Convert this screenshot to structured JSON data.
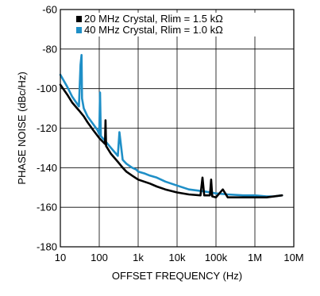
{
  "chart_data": {
    "type": "line",
    "xlabel": "OFFSET FREQUENCY (Hz)",
    "ylabel": "PHASE NOISE (dBc/Hz)",
    "x_scale": "log",
    "xlim": [
      10,
      10000000
    ],
    "ylim": [
      -180,
      -60
    ],
    "x_ticks": [
      10,
      100,
      1000,
      10000,
      100000,
      1000000,
      10000000
    ],
    "x_tick_labels": [
      "10",
      "100",
      "1k",
      "10k",
      "100k",
      "1M",
      "10M"
    ],
    "y_ticks": [
      -60,
      -80,
      -100,
      -120,
      -140,
      -160,
      -180
    ],
    "y_tick_labels": [
      "-60",
      "-80",
      "-100",
      "-120",
      "-140",
      "-160",
      "-180"
    ],
    "grid": true,
    "legend_position": "top-right",
    "series": [
      {
        "name": "40 MHz Crystal, Rlim = 1.0 kΩ",
        "color": "#1f8fc7",
        "x": [
          10,
          15,
          20,
          30,
          33,
          35,
          36,
          40,
          50,
          70,
          90,
          100,
          105,
          110,
          150,
          200,
          300,
          330,
          400,
          500,
          700,
          900,
          1000,
          1500,
          2000,
          3000,
          5000,
          10000,
          20000,
          50000,
          100000,
          200000,
          500000,
          1000000,
          2000000,
          3000000,
          5000000
        ],
        "y": [
          -93,
          -99,
          -104,
          -109,
          -88,
          -83,
          -105,
          -110,
          -114,
          -118,
          -121,
          -123,
          -102,
          -124,
          -127,
          -130,
          -134,
          -122,
          -136,
          -138,
          -140,
          -141,
          -142,
          -143,
          -144,
          -145,
          -147,
          -149,
          -151,
          -152,
          -153,
          -153.5,
          -154,
          -154,
          -154.5,
          -154.5,
          -154
        ]
      },
      {
        "name": "20 MHz Crystal, Rlim = 1.5 kΩ",
        "color": "#000000",
        "x": [
          10,
          15,
          20,
          30,
          40,
          50,
          70,
          100,
          140,
          145,
          150,
          200,
          300,
          400,
          500,
          700,
          1000,
          2000,
          3000,
          5000,
          10000,
          20000,
          40000,
          45000,
          50000,
          70000,
          75000,
          80000,
          100000,
          150000,
          200000,
          300000,
          500000,
          1000000,
          2000000,
          5000000
        ],
        "y": [
          -98,
          -103,
          -107,
          -111,
          -114,
          -117,
          -121,
          -125,
          -128,
          -116,
          -129,
          -133,
          -137,
          -140,
          -142,
          -144,
          -146,
          -148,
          -149.5,
          -151,
          -152.5,
          -153.5,
          -154,
          -145,
          -154,
          -154,
          -146,
          -154.5,
          -155,
          -151,
          -155,
          -155,
          -155,
          -155,
          -155,
          -154
        ]
      }
    ]
  }
}
